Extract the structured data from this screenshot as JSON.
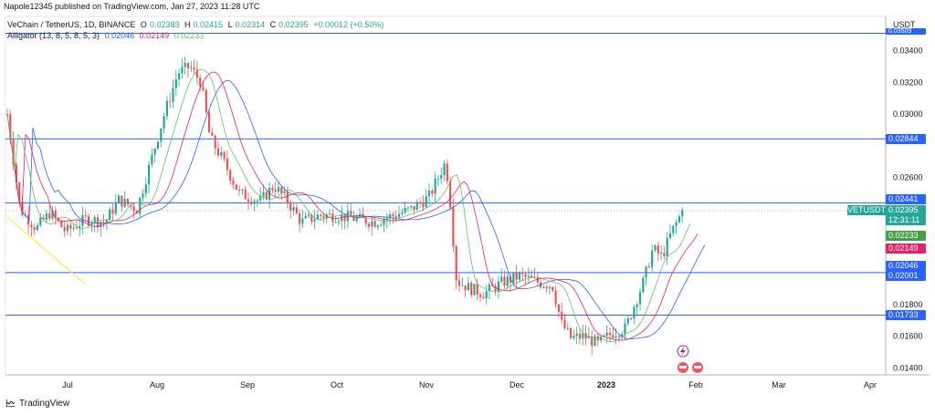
{
  "header": {
    "publisher": "Napole12345 published on TradingView.com, Jan 27, 2023 11:28 UTC"
  },
  "legend": {
    "symbol": "VeChain / TetherUS, 1D, BINANCE",
    "open_label": "O",
    "open": "0.02383",
    "high_label": "H",
    "high": "0.02415",
    "low_label": "L",
    "low": "0.02314",
    "close_label": "C",
    "close": "0.02395",
    "change": "+0.00012 (+0.50%)",
    "indicator": "Alligator (13, 8, 5, 8, 5, 3)",
    "jaw": "0.02046",
    "teeth": "0.02149",
    "lips": "0.02233"
  },
  "price_axis": {
    "currency": "USDT",
    "ticks": [
      "0.03400",
      "0.03200",
      "0.03000",
      "0.02600",
      "0.01800",
      "0.01600",
      "0.01400"
    ]
  },
  "time_axis": {
    "labels": [
      "Jul",
      "Aug",
      "Sep",
      "Oct",
      "Nov",
      "Dec",
      "2023",
      "Feb",
      "Mar",
      "Apr"
    ]
  },
  "levels": [
    "0.03509",
    "0.02844",
    "0.02441",
    "0.02001",
    "0.01733"
  ],
  "tags": {
    "top": "0.03509",
    "l1": "0.02844",
    "l2": "0.02441",
    "current": "0.02395",
    "countdown": "12:31:11",
    "lips": "0.02233",
    "teeth": "0.02149",
    "jaw": "0.02046",
    "l3": "0.02001",
    "l4": "0.01733"
  },
  "symbol_tag": "VETUSDT",
  "footer": {
    "brand": "TradingView"
  },
  "colors": {
    "up": "#26a69a",
    "down": "#ef5350",
    "level": "#2962ff",
    "jaw": "#2962ff",
    "teeth": "#e91e63",
    "lips": "#66bb6a",
    "trend": "#ffeb3b"
  },
  "chart_data": {
    "type": "candlestick",
    "ylim": [
      0.0135,
      0.0358
    ],
    "horizontal_levels": [
      0.03509,
      0.02844,
      0.02441,
      0.02001,
      0.01733
    ],
    "alligator": {
      "jaw": 0.02046,
      "teeth": 0.02149,
      "lips": 0.02233
    },
    "last": {
      "open": 0.02383,
      "high": 0.02415,
      "low": 0.02314,
      "close": 0.02395
    }
  }
}
